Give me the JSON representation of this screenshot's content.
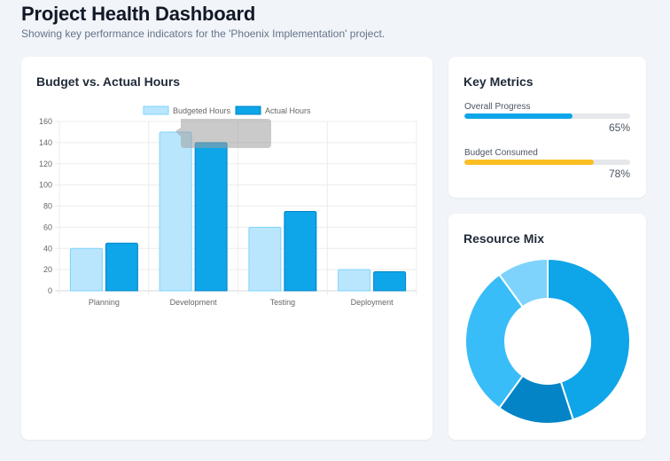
{
  "header": {
    "title": "Project Health Dashboard",
    "subtitle": "Showing key performance indicators for the 'Phoenix Implementation' project."
  },
  "budget_card": {
    "title": "Budget vs. Actual Hours"
  },
  "metrics_card": {
    "title": "Key Metrics",
    "items": [
      {
        "label": "Overall Progress",
        "value": 65,
        "value_text": "65%",
        "color": "#0ea5e9"
      },
      {
        "label": "Budget Consumed",
        "value": 78,
        "value_text": "78%",
        "color": "#fbbf24"
      }
    ]
  },
  "mix_card": {
    "title": "Resource Mix"
  },
  "chart_data": [
    {
      "type": "bar",
      "title": "Budget vs. Actual Hours",
      "categories": [
        "Planning",
        "Development",
        "Testing",
        "Deployment"
      ],
      "series": [
        {
          "name": "Budgeted Hours",
          "values": [
            40,
            150,
            60,
            20
          ],
          "color": "#bae6fd",
          "border": "#7dd3fc"
        },
        {
          "name": "Actual Hours",
          "values": [
            45,
            140,
            75,
            18
          ],
          "color": "#0ea5e9",
          "border": "#0284c7"
        }
      ],
      "ylim": [
        0,
        160
      ],
      "yticks": [
        0,
        20,
        40,
        60,
        80,
        100,
        120,
        140,
        160
      ],
      "xlabel": "",
      "ylabel": "",
      "grid": true,
      "legend": "top-center",
      "tooltip_visible": true
    },
    {
      "type": "pie",
      "variant": "doughnut",
      "title": "Resource Mix",
      "slices": [
        {
          "value": 45,
          "color": "#0ea5e9"
        },
        {
          "value": 15,
          "color": "#0284c7"
        },
        {
          "value": 30,
          "color": "#38bdf8"
        },
        {
          "value": 10,
          "color": "#7dd3fc"
        }
      ],
      "legend": "none"
    }
  ]
}
